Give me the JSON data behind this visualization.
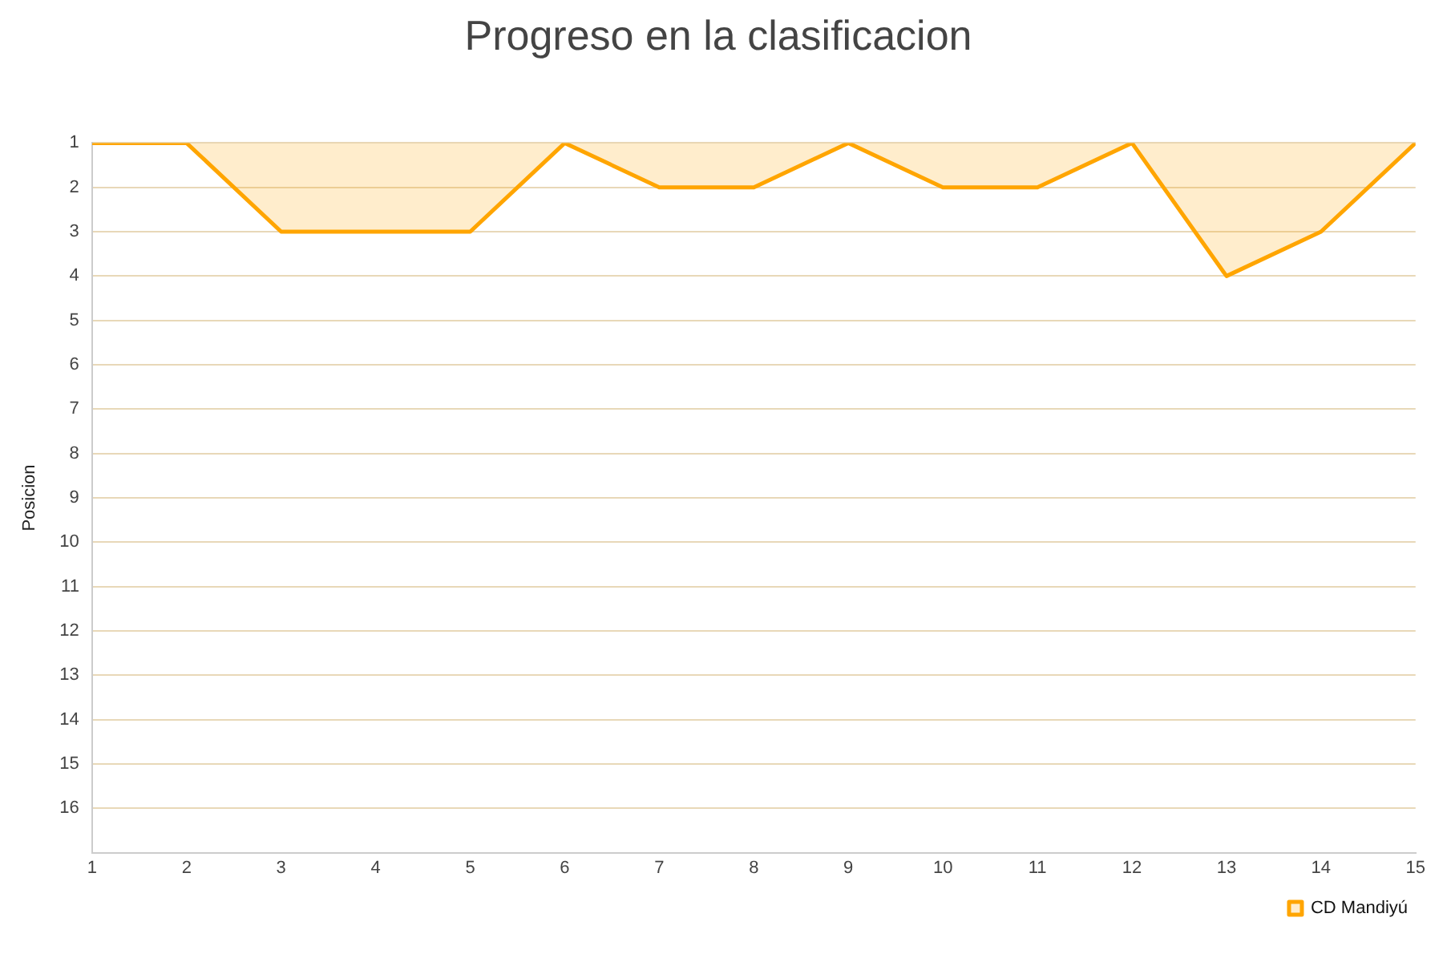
{
  "chart_data": {
    "type": "area",
    "title": "Progreso en la clasificacion",
    "ylabel": "Posicion",
    "x": [
      1,
      2,
      3,
      4,
      5,
      6,
      7,
      8,
      9,
      10,
      11,
      12,
      13,
      14,
      15
    ],
    "series": [
      {
        "name": "CD Mandiyú",
        "color": "#ffa500",
        "values": [
          1,
          1,
          3,
          3,
          3,
          1,
          2,
          2,
          1,
          2,
          2,
          1,
          4,
          3,
          1
        ]
      }
    ],
    "xlim": [
      1,
      15
    ],
    "xticks": [
      1,
      2,
      3,
      4,
      5,
      6,
      7,
      8,
      9,
      10,
      11,
      12,
      13,
      14,
      15
    ],
    "ylim": [
      17,
      1
    ],
    "yticks": [
      1,
      2,
      3,
      4,
      5,
      6,
      7,
      8,
      9,
      10,
      11,
      12,
      13,
      14,
      15,
      16
    ],
    "grid": "y",
    "legend": "bottom right",
    "marker": "none",
    "line_style": "solid"
  }
}
